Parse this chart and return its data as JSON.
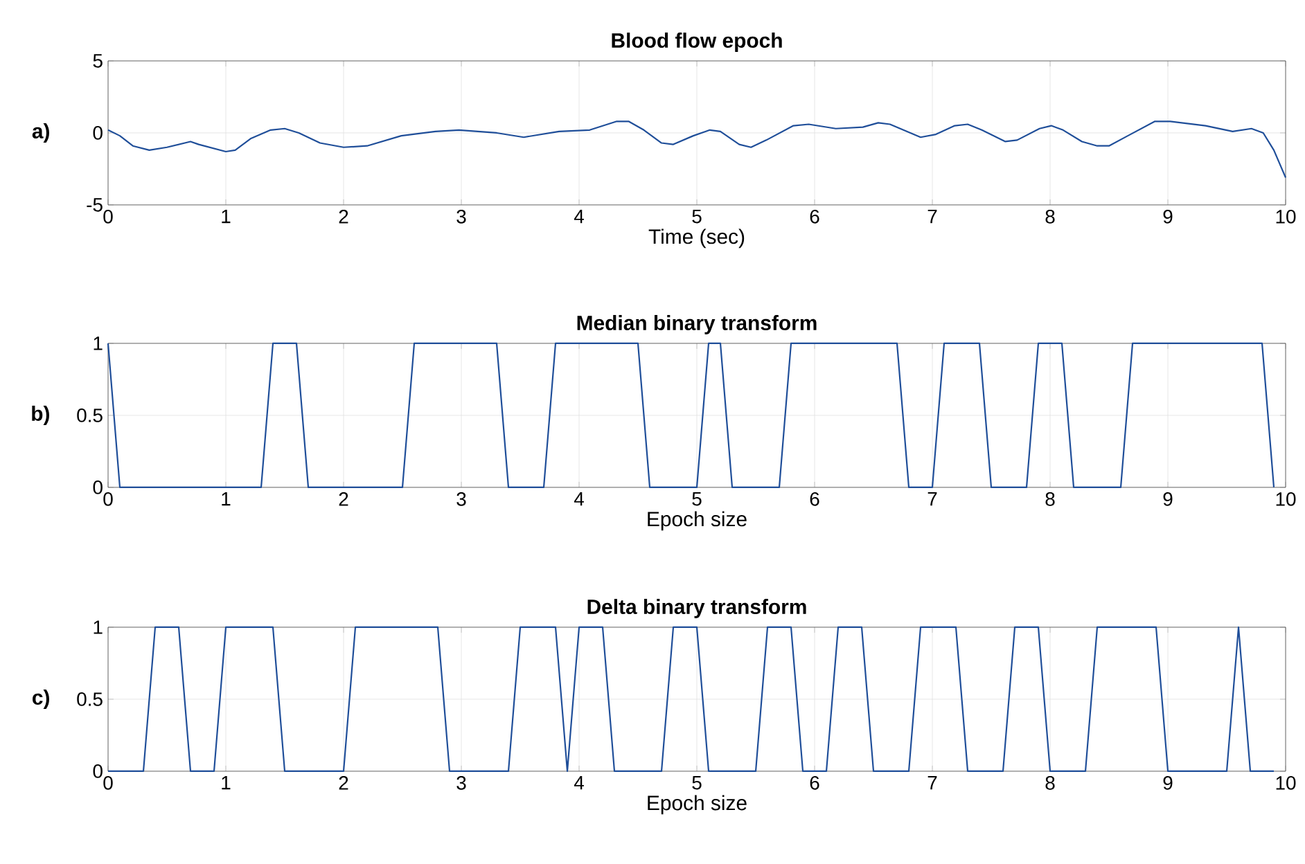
{
  "chart_data": [
    {
      "type": "line",
      "title": "Blood flow epoch",
      "xlabel": "Time (sec)",
      "annotations": [
        "a)"
      ],
      "xlim": [
        0,
        10
      ],
      "ylim": [
        -5,
        5
      ],
      "xticks": [
        0,
        1,
        2,
        3,
        4,
        5,
        6,
        7,
        8,
        9,
        10
      ],
      "yticks": [
        -5,
        0,
        5
      ],
      "grid": true,
      "marker": "none",
      "line_style": "solid",
      "series": [
        {
          "color": "#1f4e99",
          "x": [
            0,
            0.1,
            0.21,
            0.35,
            0.5,
            0.7,
            0.77,
            1.0,
            1.08,
            1.21,
            1.38,
            1.5,
            1.62,
            1.8,
            2.0,
            2.2,
            2.49,
            2.78,
            2.98,
            3.3,
            3.53,
            3.83,
            4.09,
            4.32,
            4.42,
            4.55,
            4.7,
            4.8,
            4.97,
            5.11,
            5.2,
            5.36,
            5.46,
            5.59,
            5.82,
            5.95,
            6.18,
            6.41,
            6.54,
            6.64,
            6.9,
            7.03,
            7.19,
            7.3,
            7.42,
            7.62,
            7.72,
            7.91,
            8.01,
            8.11,
            8.27,
            8.4,
            8.5,
            8.66,
            8.89,
            9.02,
            9.32,
            9.55,
            9.71,
            9.81,
            9.9,
            10.0
          ],
          "values": [
            0.2,
            -0.2,
            -0.9,
            -1.2,
            -1.0,
            -0.6,
            -0.8,
            -1.3,
            -1.2,
            -0.4,
            0.2,
            0.3,
            0,
            -0.7,
            -1.0,
            -0.9,
            -0.2,
            0.1,
            0.2,
            0,
            -0.3,
            0.1,
            0.2,
            0.8,
            0.8,
            0.2,
            -0.7,
            -0.8,
            -0.2,
            0.2,
            0.1,
            -0.8,
            -1.0,
            -0.5,
            0.5,
            0.6,
            0.3,
            0.4,
            0.7,
            0.6,
            -0.3,
            -0.1,
            0.5,
            0.6,
            0.2,
            -0.6,
            -0.5,
            0.3,
            0.5,
            0.2,
            -0.6,
            -0.9,
            -0.9,
            -0.2,
            0.8,
            0.8,
            0.5,
            0.1,
            0.3,
            0,
            -1.2,
            -3.1
          ]
        }
      ]
    },
    {
      "type": "line",
      "title": "Median binary transform",
      "xlabel": "Epoch size",
      "annotations": [
        "b)"
      ],
      "xlim": [
        0,
        10
      ],
      "ylim": [
        0,
        1
      ],
      "xticks": [
        0,
        1,
        2,
        3,
        4,
        5,
        6,
        7,
        8,
        9,
        10
      ],
      "yticks": [
        0,
        0.5,
        1
      ],
      "grid": true,
      "marker": "none",
      "line_style": "solid",
      "series": [
        {
          "color": "#1f4e99",
          "x": [
            0,
            0.1,
            1.3,
            1.4,
            1.6,
            1.7,
            2.5,
            2.6,
            3.3,
            3.4,
            3.7,
            3.8,
            4.5,
            4.6,
            5.0,
            5.1,
            5.2,
            5.3,
            5.7,
            5.8,
            6.7,
            6.8,
            7.0,
            7.1,
            7.4,
            7.5,
            7.8,
            7.9,
            8.1,
            8.2,
            8.6,
            8.7,
            9.8,
            9.9
          ],
          "values": [
            1,
            0,
            0,
            1,
            1,
            0,
            0,
            1,
            1,
            0,
            0,
            1,
            1,
            0,
            0,
            1,
            1,
            0,
            0,
            1,
            1,
            0,
            0,
            1,
            1,
            0,
            0,
            1,
            1,
            0,
            0,
            1,
            1,
            0
          ]
        }
      ]
    },
    {
      "type": "line",
      "title": "Delta binary transform",
      "xlabel": "Epoch size",
      "annotations": [
        "c)"
      ],
      "xlim": [
        0,
        10
      ],
      "ylim": [
        0,
        1
      ],
      "xticks": [
        0,
        1,
        2,
        3,
        4,
        5,
        6,
        7,
        8,
        9,
        10
      ],
      "yticks": [
        0,
        0.5,
        1
      ],
      "grid": true,
      "marker": "none",
      "line_style": "solid",
      "series": [
        {
          "color": "#1f4e99",
          "x": [
            0,
            0.3,
            0.4,
            0.6,
            0.7,
            0.9,
            1.0,
            1.4,
            1.5,
            2.0,
            2.1,
            2.8,
            2.9,
            3.4,
            3.5,
            3.8,
            3.9,
            4.0,
            4.2,
            4.3,
            4.7,
            4.8,
            5.0,
            5.1,
            5.5,
            5.6,
            5.8,
            5.9,
            6.1,
            6.2,
            6.4,
            6.5,
            6.8,
            6.9,
            7.2,
            7.3,
            7.6,
            7.7,
            7.9,
            8.0,
            8.3,
            8.4,
            8.9,
            9.0,
            9.5,
            9.6,
            9.7,
            9.9
          ],
          "values": [
            0,
            0,
            1,
            1,
            0,
            0,
            1,
            1,
            0,
            0,
            1,
            1,
            0,
            0,
            1,
            1,
            0,
            1,
            1,
            0,
            0,
            1,
            1,
            0,
            0,
            1,
            1,
            0,
            0,
            1,
            1,
            0,
            0,
            1,
            1,
            0,
            0,
            1,
            1,
            0,
            0,
            1,
            1,
            0,
            0,
            1,
            0,
            0
          ]
        }
      ]
    }
  ]
}
